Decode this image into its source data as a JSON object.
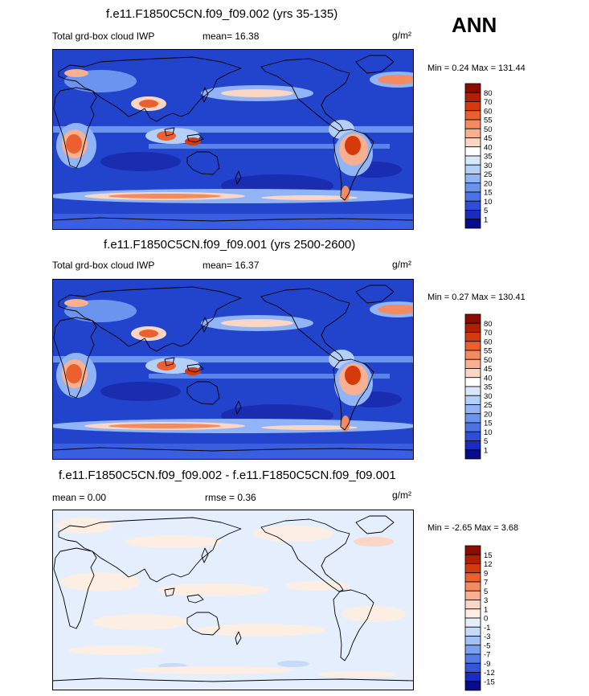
{
  "season": "ANN",
  "units": "g/m²",
  "panels": [
    {
      "title": "f.e11.F1850C5CN.f09_f09.002 (yrs 35-135)",
      "left_label": "Total grd-box cloud IWP",
      "center_label": "mean=  16.38",
      "minmax": "Min =   0.24 Max = 131.44"
    },
    {
      "title": "f.e11.F1850C5CN.f09_f09.001 (yrs 2500-2600)",
      "left_label": "Total grd-box cloud IWP",
      "center_label": "mean=  16.37",
      "minmax": "Min =   0.27 Max = 130.41"
    },
    {
      "title": "f.e11.F1850C5CN.f09_f09.002 - f.e11.F1850C5CN.f09_f09.001",
      "left_label": "mean =   0.00",
      "center_label": "rmse =   0.36",
      "minmax": "Min =  -2.65 Max =   3.68"
    }
  ],
  "colorbars": {
    "absolute": {
      "levels": [
        "80",
        "70",
        "60",
        "55",
        "50",
        "45",
        "40",
        "35",
        "30",
        "25",
        "20",
        "15",
        "10",
        "5",
        "1"
      ],
      "colors": [
        "#8c0c00",
        "#b02000",
        "#d43a0c",
        "#ec6030",
        "#f48a60",
        "#f8b090",
        "#fcd6c4",
        "#ffffff",
        "#d8e8fc",
        "#b4d0fa",
        "#90b4f6",
        "#6a94ee",
        "#4a74e4",
        "#2e4ed8",
        "#1a2cc0",
        "#060c8c"
      ]
    },
    "difference": {
      "levels": [
        "15",
        "12",
        "9",
        "7",
        "5",
        "3",
        "1",
        "0",
        "-1",
        "-3",
        "-5",
        "-7",
        "-9",
        "-12",
        "-15"
      ],
      "colors": [
        "#8c0c00",
        "#b02000",
        "#d43a0c",
        "#ec6030",
        "#f48a60",
        "#f8b090",
        "#fcd6c4",
        "#fdeee4",
        "#e4eefc",
        "#c6dafa",
        "#a0c0f6",
        "#7aa0ee",
        "#547ce4",
        "#3456d8",
        "#1a2cc0",
        "#060c8c"
      ]
    }
  }
}
